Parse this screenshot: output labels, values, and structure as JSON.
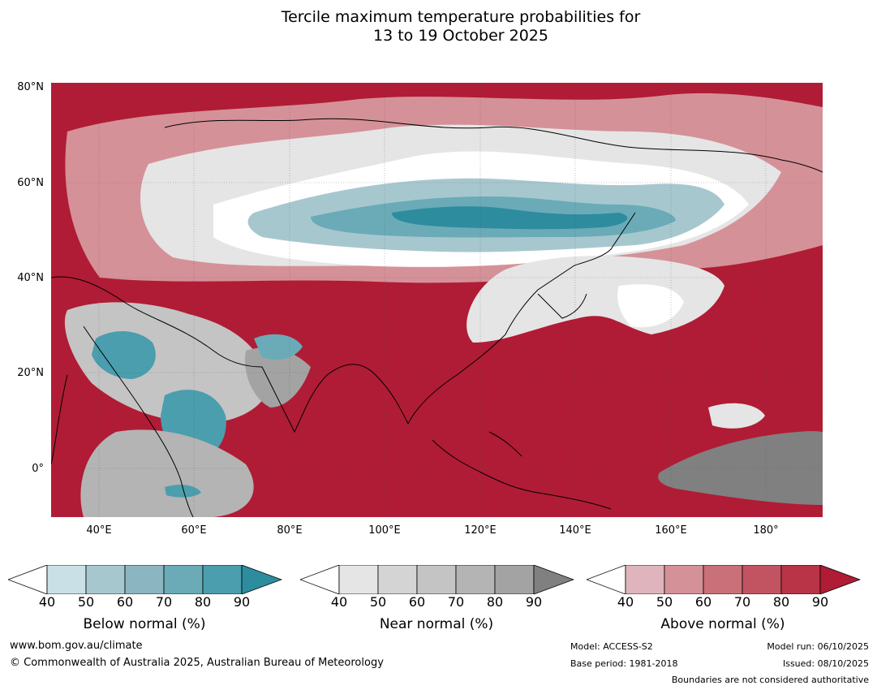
{
  "title": {
    "line1": "Tercile maximum temperature probabilities for",
    "line2": "13 to 19 October 2025"
  },
  "map": {
    "lat_labels": [
      "80°N",
      "60°N",
      "40°N",
      "20°N",
      "0°"
    ],
    "lon_labels": [
      "40°E",
      "60°E",
      "80°E",
      "100°E",
      "120°E",
      "140°E",
      "160°E",
      "180°"
    ]
  },
  "legends": [
    {
      "title": "Below normal (%)",
      "ticks": [
        "40",
        "50",
        "60",
        "70",
        "80",
        "90"
      ],
      "colors": [
        "#ffffff",
        "#c9e0e6",
        "#a7c7cf",
        "#8ab5c1",
        "#6aabb7",
        "#4a9eae",
        "#2d8c9e"
      ]
    },
    {
      "title": "Near normal (%)",
      "ticks": [
        "40",
        "50",
        "60",
        "70",
        "80",
        "90"
      ],
      "colors": [
        "#ffffff",
        "#e5e5e5",
        "#d4d4d4",
        "#c4c4c4",
        "#b4b4b4",
        "#a3a3a3",
        "#808080"
      ]
    },
    {
      "title": "Above normal (%)",
      "ticks": [
        "40",
        "50",
        "60",
        "70",
        "80",
        "90"
      ],
      "colors": [
        "#ffffff",
        "#e0b4bc",
        "#d59198",
        "#c97078",
        "#c25462",
        "#b93446",
        "#b01c35"
      ]
    }
  ],
  "footer": {
    "website": "www.bom.gov.au/climate",
    "copyright": "© Commonwealth of Australia 2025, Australian Bureau of Meteorology",
    "model": "Model: ACCESS-S2",
    "base_period": "Base period: 1981-2018",
    "model_run": "Model run: 06/10/2025",
    "issued": "Issued: 08/10/2025",
    "disclaimer": "Boundaries are not considered authoritative"
  }
}
